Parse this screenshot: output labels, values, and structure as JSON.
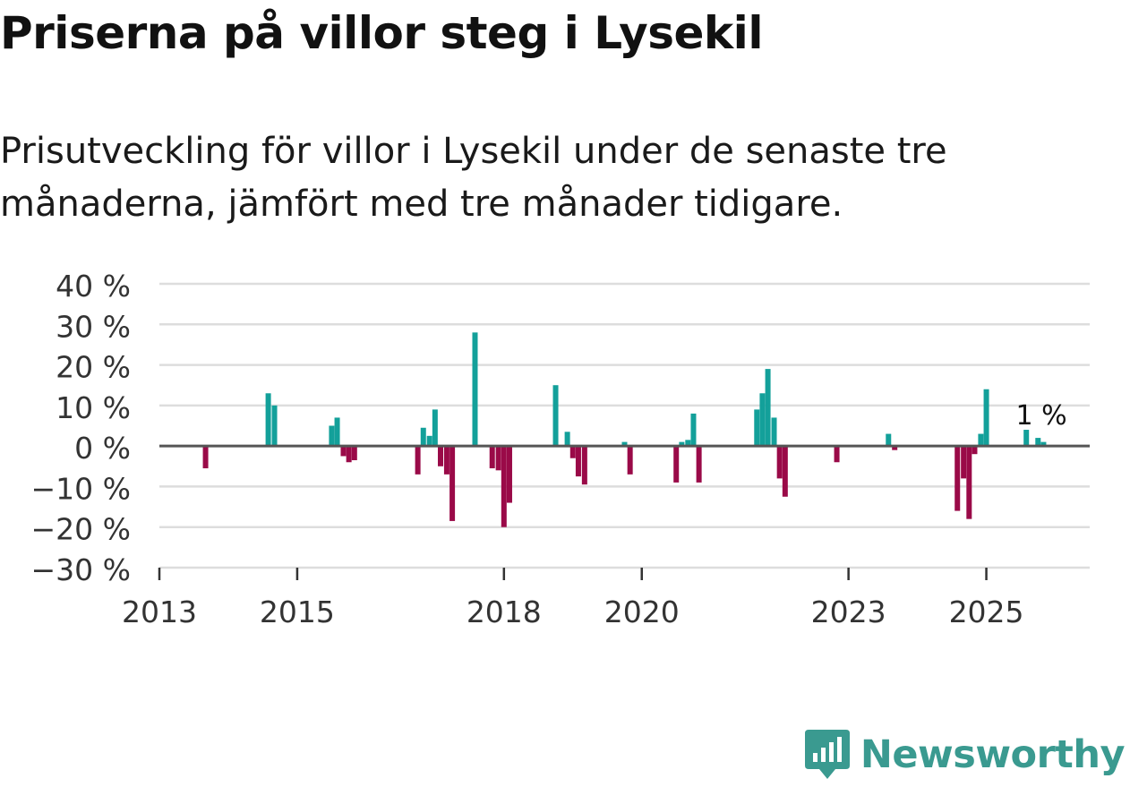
{
  "header": {
    "title": "Priserna på villor steg i Lysekil",
    "subtitle": "Prisutveckling för villor i Lysekil under de senaste tre månaderna, jämfört med tre månader tidigare."
  },
  "colors": {
    "positive": "#13a09a",
    "negative": "#9a0a48",
    "grid": "#dddddd",
    "zero_line": "#555555",
    "axis_text": "#333333"
  },
  "chart_data": {
    "type": "bar",
    "title": "Priserna på villor steg i Lysekil",
    "ylabel": "",
    "xlabel": "",
    "ylim": [
      -30,
      40
    ],
    "y_ticks": [
      40,
      30,
      20,
      10,
      0,
      -10,
      -20,
      -30
    ],
    "y_tick_labels": [
      "40 %",
      "30 %",
      "20 %",
      "10 %",
      "0 %",
      "−10 %",
      "−20 %",
      "−30 %"
    ],
    "x_range": [
      2013.0,
      2026.5
    ],
    "x_ticks": [
      2013,
      2015,
      2018,
      2020,
      2023,
      2025
    ],
    "x_tick_labels": [
      "2013",
      "2015",
      "2018",
      "2020",
      "2023",
      "2025"
    ],
    "annotation": {
      "text": "1 %",
      "x": 2025.8,
      "y": 1
    },
    "series": [
      {
        "name": "Prisutveckling",
        "points": [
          {
            "x": 2013.67,
            "y": -5.5
          },
          {
            "x": 2014.58,
            "y": 13
          },
          {
            "x": 2014.67,
            "y": 10
          },
          {
            "x": 2015.5,
            "y": 5
          },
          {
            "x": 2015.58,
            "y": 7
          },
          {
            "x": 2015.67,
            "y": -2.5
          },
          {
            "x": 2015.75,
            "y": -4
          },
          {
            "x": 2015.83,
            "y": -3.5
          },
          {
            "x": 2016.75,
            "y": -7
          },
          {
            "x": 2016.83,
            "y": 4.5
          },
          {
            "x": 2016.92,
            "y": 2.5
          },
          {
            "x": 2017.0,
            "y": 9
          },
          {
            "x": 2017.08,
            "y": -5
          },
          {
            "x": 2017.17,
            "y": -7
          },
          {
            "x": 2017.25,
            "y": -18.5
          },
          {
            "x": 2017.58,
            "y": 28
          },
          {
            "x": 2017.83,
            "y": -5.5
          },
          {
            "x": 2017.92,
            "y": -6
          },
          {
            "x": 2018.0,
            "y": -20
          },
          {
            "x": 2018.08,
            "y": -14
          },
          {
            "x": 2018.75,
            "y": 15
          },
          {
            "x": 2018.92,
            "y": 3.5
          },
          {
            "x": 2019.0,
            "y": -3
          },
          {
            "x": 2019.08,
            "y": -7.5
          },
          {
            "x": 2019.17,
            "y": -9.5
          },
          {
            "x": 2019.75,
            "y": 1
          },
          {
            "x": 2019.83,
            "y": -7
          },
          {
            "x": 2020.5,
            "y": -9
          },
          {
            "x": 2020.58,
            "y": 1
          },
          {
            "x": 2020.67,
            "y": 1.5
          },
          {
            "x": 2020.75,
            "y": 8
          },
          {
            "x": 2020.83,
            "y": -9
          },
          {
            "x": 2021.67,
            "y": 9
          },
          {
            "x": 2021.75,
            "y": 13
          },
          {
            "x": 2021.83,
            "y": 19
          },
          {
            "x": 2021.92,
            "y": 7
          },
          {
            "x": 2022.0,
            "y": -8
          },
          {
            "x": 2022.08,
            "y": -12.5
          },
          {
            "x": 2022.83,
            "y": -4
          },
          {
            "x": 2023.58,
            "y": 3
          },
          {
            "x": 2023.67,
            "y": -1
          },
          {
            "x": 2024.58,
            "y": -16
          },
          {
            "x": 2024.67,
            "y": -8
          },
          {
            "x": 2024.75,
            "y": -18
          },
          {
            "x": 2024.83,
            "y": -2
          },
          {
            "x": 2024.92,
            "y": 3
          },
          {
            "x": 2025.0,
            "y": 14
          },
          {
            "x": 2025.58,
            "y": 4
          },
          {
            "x": 2025.75,
            "y": 2
          },
          {
            "x": 2025.83,
            "y": 1
          }
        ]
      }
    ]
  },
  "footer": {
    "brand": "Newsworthy"
  }
}
